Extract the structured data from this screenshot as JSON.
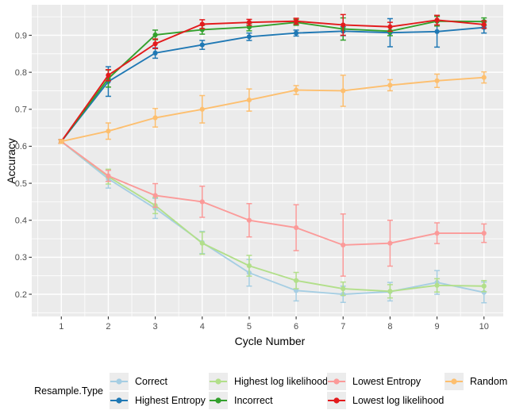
{
  "figure": {
    "panel_bg": "#ebebeb",
    "grid_color": "#ffffff",
    "tick_mark_color": "#333333",
    "tick_label_color": "#4d4d4d",
    "legend_key_bg": "#ececec"
  },
  "chart_data": {
    "type": "line",
    "title": "",
    "xlabel": "Cycle Number",
    "ylabel": "Accuracy",
    "legend_title": "Resample.Type",
    "legend_position": "bottom",
    "grid": "major+minor",
    "x": [
      1,
      2,
      3,
      4,
      5,
      6,
      7,
      8,
      9,
      10
    ],
    "xticks": [
      1,
      2,
      3,
      4,
      5,
      6,
      7,
      8,
      9,
      10
    ],
    "yticks": [
      0.2,
      0.3,
      0.4,
      0.5,
      0.6,
      0.7,
      0.8,
      0.9
    ],
    "xlim": [
      0.37,
      10.41
    ],
    "ylim": [
      0.14,
      0.9825
    ],
    "series": [
      {
        "name": "Correct",
        "color": "#a6cee3",
        "values": [
          0.613,
          0.512,
          0.432,
          0.34,
          0.258,
          0.21,
          0.2,
          0.207,
          0.232,
          0.205
        ],
        "errors": [
          0.005,
          0.025,
          0.027,
          0.03,
          0.036,
          0.028,
          0.022,
          0.025,
          0.032,
          0.028
        ]
      },
      {
        "name": "Highest Entropy",
        "color": "#1f78b4",
        "values": [
          0.613,
          0.775,
          0.852,
          0.874,
          0.896,
          0.906,
          0.911,
          0.907,
          0.91,
          0.921
        ],
        "errors": [
          0.005,
          0.04,
          0.014,
          0.012,
          0.01,
          0.008,
          0.012,
          0.038,
          0.042,
          0.015
        ]
      },
      {
        "name": "Highest log likelihood",
        "color": "#b2df8a",
        "values": [
          0.613,
          0.518,
          0.44,
          0.338,
          0.277,
          0.237,
          0.215,
          0.208,
          0.224,
          0.222
        ],
        "errors": [
          0.005,
          0.02,
          0.022,
          0.03,
          0.028,
          0.022,
          0.018,
          0.018,
          0.018,
          0.015
        ]
      },
      {
        "name": "Incorrect",
        "color": "#33a02c",
        "values": [
          0.613,
          0.783,
          0.901,
          0.915,
          0.922,
          0.935,
          0.917,
          0.911,
          0.938,
          0.937
        ],
        "errors": [
          0.005,
          0.023,
          0.013,
          0.012,
          0.01,
          0.008,
          0.03,
          0.012,
          0.013,
          0.01
        ]
      },
      {
        "name": "Lowest Entropy",
        "color": "#fb9a99",
        "values": [
          0.613,
          0.52,
          0.467,
          0.45,
          0.4,
          0.38,
          0.333,
          0.338,
          0.365,
          0.365
        ],
        "errors": [
          0.005,
          0.015,
          0.032,
          0.042,
          0.045,
          0.062,
          0.084,
          0.062,
          0.028,
          0.025
        ]
      },
      {
        "name": "Lowest log likelihood",
        "color": "#e31a1c",
        "values": [
          0.613,
          0.792,
          0.877,
          0.93,
          0.935,
          0.938,
          0.928,
          0.923,
          0.941,
          0.929
        ],
        "errors": [
          0.005,
          0.015,
          0.013,
          0.012,
          0.008,
          0.008,
          0.028,
          0.012,
          0.013,
          0.01
        ]
      },
      {
        "name": "Random",
        "color": "#fdbf6f",
        "values": [
          0.613,
          0.641,
          0.677,
          0.7,
          0.725,
          0.752,
          0.75,
          0.765,
          0.777,
          0.786
        ],
        "errors": [
          0.005,
          0.022,
          0.025,
          0.037,
          0.03,
          0.012,
          0.042,
          0.015,
          0.018,
          0.015
        ]
      }
    ]
  }
}
